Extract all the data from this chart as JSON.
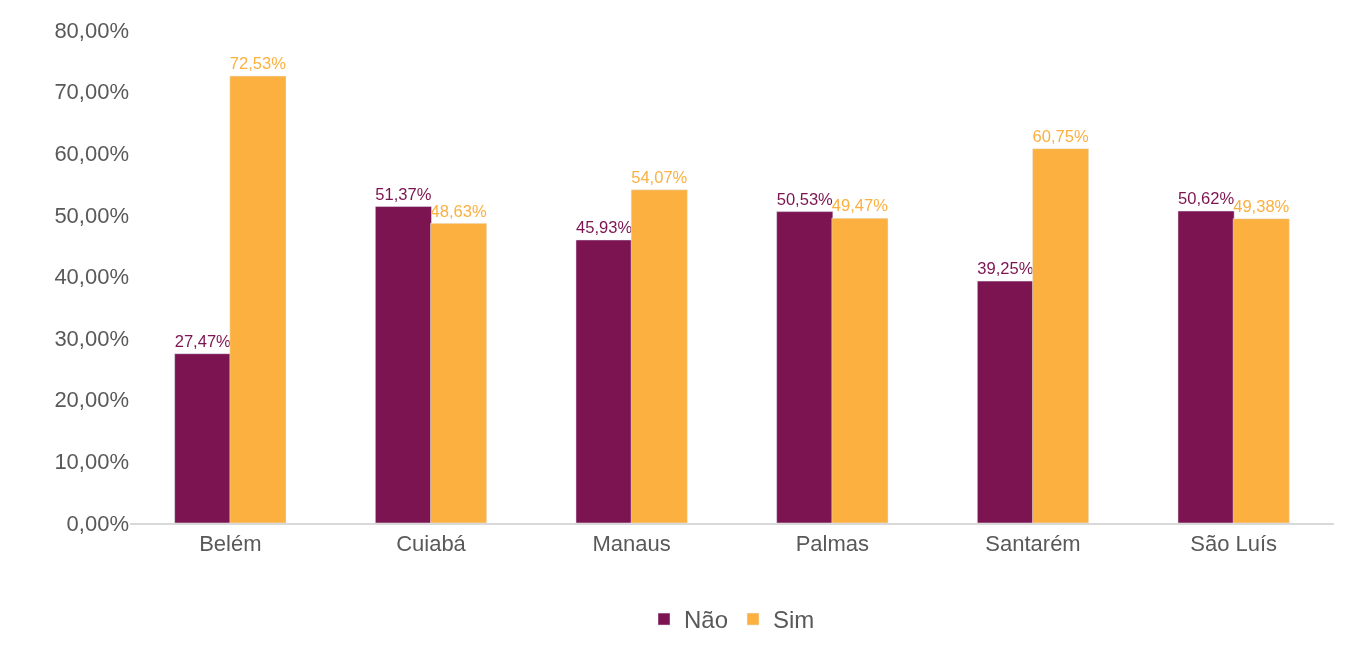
{
  "chart_data": {
    "type": "bar",
    "categories": [
      "Belém",
      "Cuiabá",
      "Manaus",
      "Palmas",
      "Santarém",
      "São Luís"
    ],
    "series": [
      {
        "name": "Não",
        "color": "#7b1450",
        "values": [
          27.47,
          51.37,
          45.93,
          50.53,
          39.25,
          50.62
        ],
        "value_labels": [
          "27,47%",
          "51,37%",
          "45,93%",
          "50,53%",
          "39,25%",
          "50,62%"
        ]
      },
      {
        "name": "Sim",
        "color": "#fbb040",
        "values": [
          72.53,
          48.63,
          54.07,
          49.47,
          60.75,
          49.38
        ],
        "value_labels": [
          "72,53%",
          "48,63%",
          "54,07%",
          "49,47%",
          "60,75%",
          "49,38%"
        ]
      }
    ],
    "ylim": [
      0,
      80
    ],
    "yticks": [
      {
        "value": 0,
        "label": "0,00%"
      },
      {
        "value": 10,
        "label": "10,00%"
      },
      {
        "value": 20,
        "label": "20,00%"
      },
      {
        "value": 30,
        "label": "30,00%"
      },
      {
        "value": 40,
        "label": "40,00%"
      },
      {
        "value": 50,
        "label": "50,00%"
      },
      {
        "value": 60,
        "label": "60,00%"
      },
      {
        "value": 70,
        "label": "70,00%"
      },
      {
        "value": 80,
        "label": "80,00%"
      }
    ],
    "grid": false,
    "legend": "bottom"
  }
}
